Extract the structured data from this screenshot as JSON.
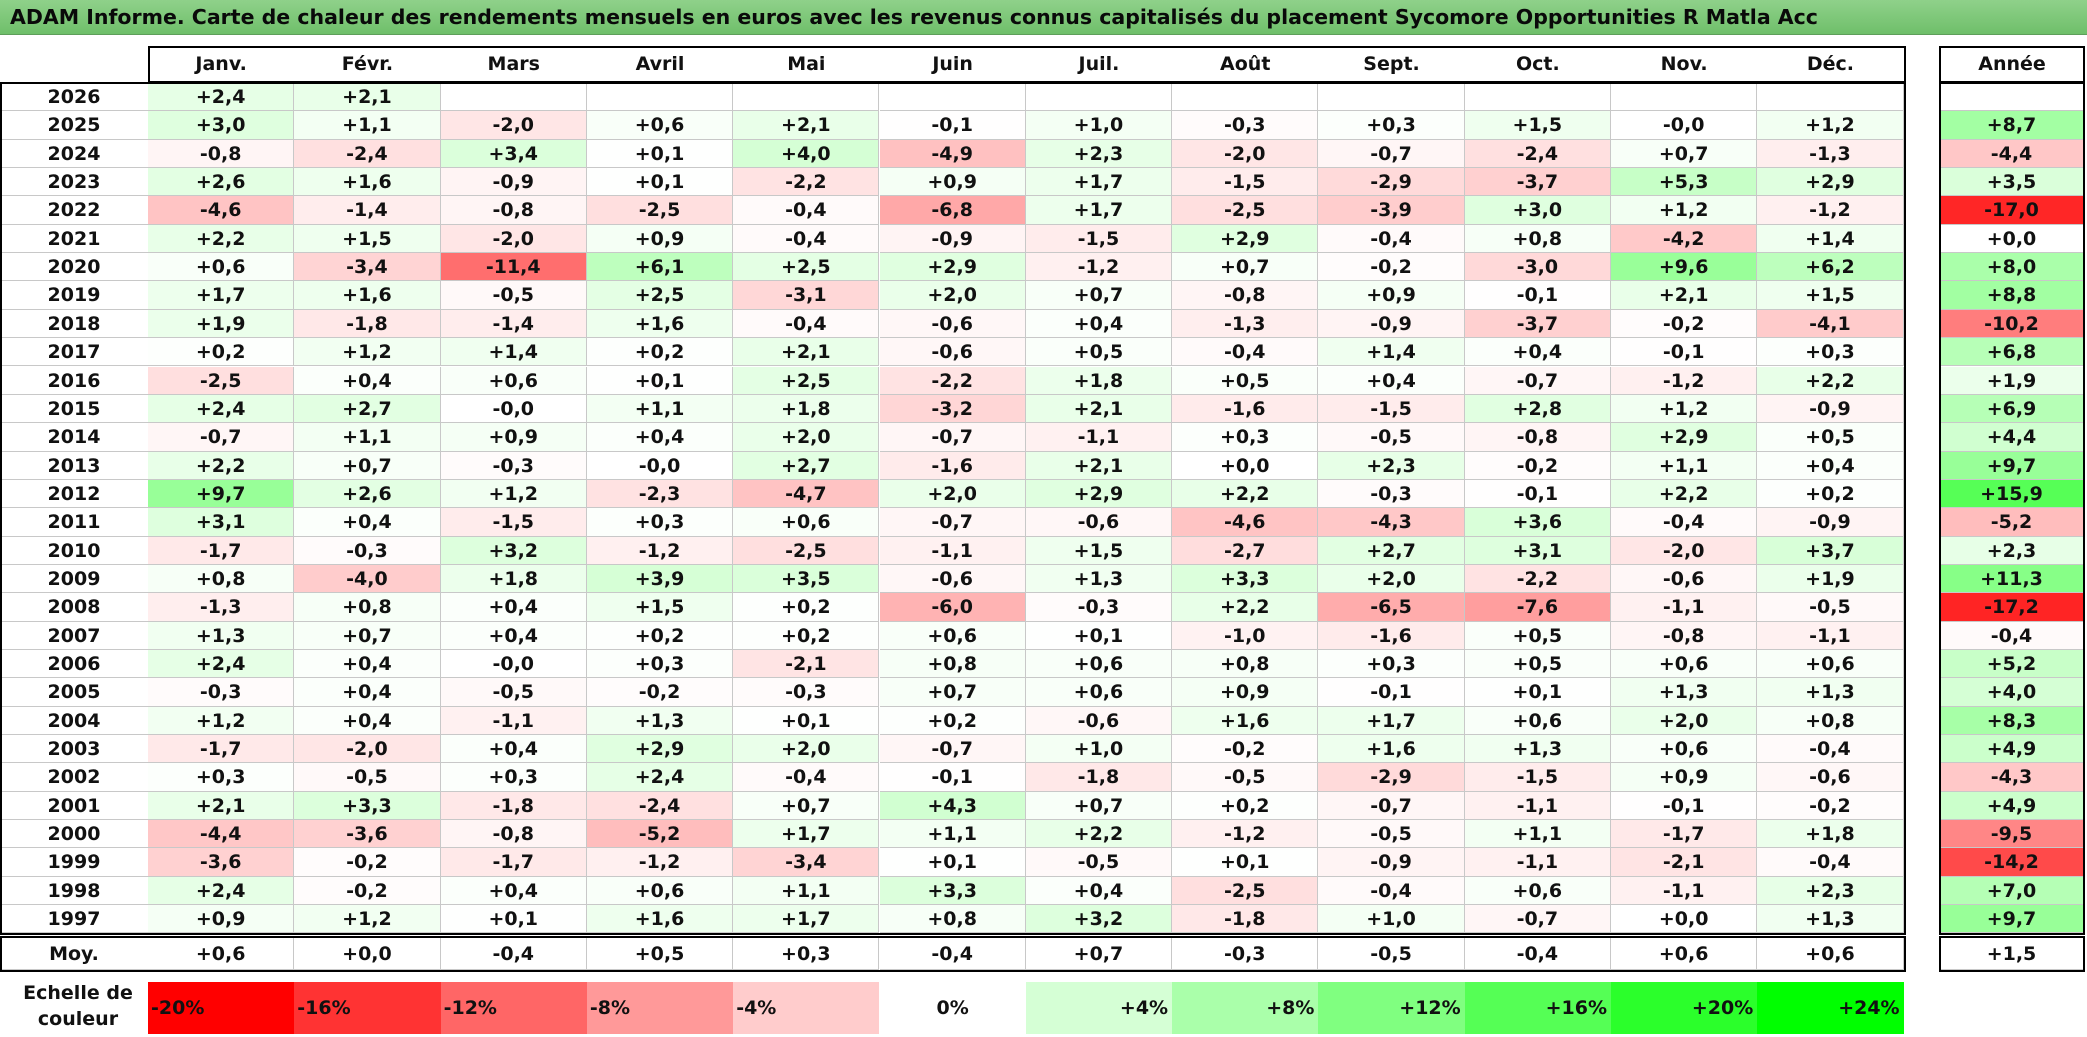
{
  "title": "ADAM Informe. Carte de chaleur des rendements mensuels en euros avec les revenus connus capitalisés du placement Sycomore Opportunities R Matla Acc",
  "legend_label": "Echelle de couleur",
  "colors": {
    "neg_max": "#ff0000",
    "pos_max": "#00ff00",
    "title_bg": "#7fc87a"
  },
  "chart_data": {
    "type": "heatmap",
    "title": "ADAM Informe. Carte de chaleur des rendements mensuels en euros avec les revenus connus capitalisés du placement Sycomore Opportunities R Matla Acc",
    "columns": [
      "Janv.",
      "Févr.",
      "Mars",
      "Avril",
      "Mai",
      "Juin",
      "Juil.",
      "Août",
      "Sept.",
      "Oct.",
      "Nov.",
      "Déc."
    ],
    "annual_header": "Année",
    "rows": [
      {
        "year": "2026",
        "values": [
          "+2,4",
          "+2,1",
          "",
          "",
          "",
          "",
          "",
          "",
          "",
          "",
          "",
          ""
        ],
        "annual": ""
      },
      {
        "year": "2025",
        "values": [
          "+3,0",
          "+1,1",
          "-2,0",
          "+0,6",
          "+2,1",
          "-0,1",
          "+1,0",
          "-0,3",
          "+0,3",
          "+1,5",
          "-0,0",
          "+1,2"
        ],
        "annual": "+8,7"
      },
      {
        "year": "2024",
        "values": [
          "-0,8",
          "-2,4",
          "+3,4",
          "+0,1",
          "+4,0",
          "-4,9",
          "+2,3",
          "-2,0",
          "-0,7",
          "-2,4",
          "+0,7",
          "-1,3"
        ],
        "annual": "-4,4"
      },
      {
        "year": "2023",
        "values": [
          "+2,6",
          "+1,6",
          "-0,9",
          "+0,1",
          "-2,2",
          "+0,9",
          "+1,7",
          "-1,5",
          "-2,9",
          "-3,7",
          "+5,3",
          "+2,9"
        ],
        "annual": "+3,5"
      },
      {
        "year": "2022",
        "values": [
          "-4,6",
          "-1,4",
          "-0,8",
          "-2,5",
          "-0,4",
          "-6,8",
          "+1,7",
          "-2,5",
          "-3,9",
          "+3,0",
          "+1,2",
          "-1,2"
        ],
        "annual": "-17,0"
      },
      {
        "year": "2021",
        "values": [
          "+2,2",
          "+1,5",
          "-2,0",
          "+0,9",
          "-0,4",
          "-0,9",
          "-1,5",
          "+2,9",
          "-0,4",
          "+0,8",
          "-4,2",
          "+1,4"
        ],
        "annual": "+0,0"
      },
      {
        "year": "2020",
        "values": [
          "+0,6",
          "-3,4",
          "-11,4",
          "+6,1",
          "+2,5",
          "+2,9",
          "-1,2",
          "+0,7",
          "-0,2",
          "-3,0",
          "+9,6",
          "+6,2"
        ],
        "annual": "+8,0"
      },
      {
        "year": "2019",
        "values": [
          "+1,7",
          "+1,6",
          "-0,5",
          "+2,5",
          "-3,1",
          "+2,0",
          "+0,7",
          "-0,8",
          "+0,9",
          "-0,1",
          "+2,1",
          "+1,5"
        ],
        "annual": "+8,8"
      },
      {
        "year": "2018",
        "values": [
          "+1,9",
          "-1,8",
          "-1,4",
          "+1,6",
          "-0,4",
          "-0,6",
          "+0,4",
          "-1,3",
          "-0,9",
          "-3,7",
          "-0,2",
          "-4,1"
        ],
        "annual": "-10,2"
      },
      {
        "year": "2017",
        "values": [
          "+0,2",
          "+1,2",
          "+1,4",
          "+0,2",
          "+2,1",
          "-0,6",
          "+0,5",
          "-0,4",
          "+1,4",
          "+0,4",
          "-0,1",
          "+0,3"
        ],
        "annual": "+6,8"
      },
      {
        "year": "2016",
        "values": [
          "-2,5",
          "+0,4",
          "+0,6",
          "+0,1",
          "+2,5",
          "-2,2",
          "+1,8",
          "+0,5",
          "+0,4",
          "-0,7",
          "-1,2",
          "+2,2"
        ],
        "annual": "+1,9"
      },
      {
        "year": "2015",
        "values": [
          "+2,4",
          "+2,7",
          "-0,0",
          "+1,1",
          "+1,8",
          "-3,2",
          "+2,1",
          "-1,6",
          "-1,5",
          "+2,8",
          "+1,2",
          "-0,9"
        ],
        "annual": "+6,9"
      },
      {
        "year": "2014",
        "values": [
          "-0,7",
          "+1,1",
          "+0,9",
          "+0,4",
          "+2,0",
          "-0,7",
          "-1,1",
          "+0,3",
          "-0,5",
          "-0,8",
          "+2,9",
          "+0,5"
        ],
        "annual": "+4,4"
      },
      {
        "year": "2013",
        "values": [
          "+2,2",
          "+0,7",
          "-0,3",
          "-0,0",
          "+2,7",
          "-1,6",
          "+2,1",
          "+0,0",
          "+2,3",
          "-0,2",
          "+1,1",
          "+0,4"
        ],
        "annual": "+9,7"
      },
      {
        "year": "2012",
        "values": [
          "+9,7",
          "+2,6",
          "+1,2",
          "-2,3",
          "-4,7",
          "+2,0",
          "+2,9",
          "+2,2",
          "-0,3",
          "-0,1",
          "+2,2",
          "+0,2"
        ],
        "annual": "+15,9"
      },
      {
        "year": "2011",
        "values": [
          "+3,1",
          "+0,4",
          "-1,5",
          "+0,3",
          "+0,6",
          "-0,7",
          "-0,6",
          "-4,6",
          "-4,3",
          "+3,6",
          "-0,4",
          "-0,9"
        ],
        "annual": "-5,2"
      },
      {
        "year": "2010",
        "values": [
          "-1,7",
          "-0,3",
          "+3,2",
          "-1,2",
          "-2,5",
          "-1,1",
          "+1,5",
          "-2,7",
          "+2,7",
          "+3,1",
          "-2,0",
          "+3,7"
        ],
        "annual": "+2,3"
      },
      {
        "year": "2009",
        "values": [
          "+0,8",
          "-4,0",
          "+1,8",
          "+3,9",
          "+3,5",
          "-0,6",
          "+1,3",
          "+3,3",
          "+2,0",
          "-2,2",
          "-0,6",
          "+1,9"
        ],
        "annual": "+11,3"
      },
      {
        "year": "2008",
        "values": [
          "-1,3",
          "+0,8",
          "+0,4",
          "+1,5",
          "+0,2",
          "-6,0",
          "-0,3",
          "+2,2",
          "-6,5",
          "-7,6",
          "-1,1",
          "-0,5"
        ],
        "annual": "-17,2"
      },
      {
        "year": "2007",
        "values": [
          "+1,3",
          "+0,7",
          "+0,4",
          "+0,2",
          "+0,2",
          "+0,6",
          "+0,1",
          "-1,0",
          "-1,6",
          "+0,5",
          "-0,8",
          "-1,1"
        ],
        "annual": "-0,4"
      },
      {
        "year": "2006",
        "values": [
          "+2,4",
          "+0,4",
          "-0,0",
          "+0,3",
          "-2,1",
          "+0,8",
          "+0,6",
          "+0,8",
          "+0,3",
          "+0,5",
          "+0,6",
          "+0,6"
        ],
        "annual": "+5,2"
      },
      {
        "year": "2005",
        "values": [
          "-0,3",
          "+0,4",
          "-0,5",
          "-0,2",
          "-0,3",
          "+0,7",
          "+0,6",
          "+0,9",
          "-0,1",
          "+0,1",
          "+1,3",
          "+1,3"
        ],
        "annual": "+4,0"
      },
      {
        "year": "2004",
        "values": [
          "+1,2",
          "+0,4",
          "-1,1",
          "+1,3",
          "+0,1",
          "+0,2",
          "-0,6",
          "+1,6",
          "+1,7",
          "+0,6",
          "+2,0",
          "+0,8"
        ],
        "annual": "+8,3"
      },
      {
        "year": "2003",
        "values": [
          "-1,7",
          "-2,0",
          "+0,4",
          "+2,9",
          "+2,0",
          "-0,7",
          "+1,0",
          "-0,2",
          "+1,6",
          "+1,3",
          "+0,6",
          "-0,4"
        ],
        "annual": "+4,9"
      },
      {
        "year": "2002",
        "values": [
          "+0,3",
          "-0,5",
          "+0,3",
          "+2,4",
          "-0,4",
          "-0,1",
          "-1,8",
          "-0,5",
          "-2,9",
          "-1,5",
          "+0,9",
          "-0,6"
        ],
        "annual": "-4,3"
      },
      {
        "year": "2001",
        "values": [
          "+2,1",
          "+3,3",
          "-1,8",
          "-2,4",
          "+0,7",
          "+4,3",
          "+0,7",
          "+0,2",
          "-0,7",
          "-1,1",
          "-0,1",
          "-0,2"
        ],
        "annual": "+4,9"
      },
      {
        "year": "2000",
        "values": [
          "-4,4",
          "-3,6",
          "-0,8",
          "-5,2",
          "+1,7",
          "+1,1",
          "+2,2",
          "-1,2",
          "-0,5",
          "+1,1",
          "-1,7",
          "+1,8"
        ],
        "annual": "-9,5"
      },
      {
        "year": "1999",
        "values": [
          "-3,6",
          "-0,2",
          "-1,7",
          "-1,2",
          "-3,4",
          "+0,1",
          "-0,5",
          "+0,1",
          "-0,9",
          "-1,1",
          "-2,1",
          "-0,4"
        ],
        "annual": "-14,2"
      },
      {
        "year": "1998",
        "values": [
          "+2,4",
          "-0,2",
          "+0,4",
          "+0,6",
          "+1,1",
          "+3,3",
          "+0,4",
          "-2,5",
          "-0,4",
          "+0,6",
          "-1,1",
          "+2,3"
        ],
        "annual": "+7,0"
      },
      {
        "year": "1997",
        "values": [
          "+0,9",
          "+1,2",
          "+0,1",
          "+1,6",
          "+1,7",
          "+0,8",
          "+3,2",
          "-1,8",
          "+1,0",
          "-0,7",
          "+0,0",
          "+1,3"
        ],
        "annual": "+9,7"
      }
    ],
    "average": {
      "label": "Moy.",
      "values": [
        "+0,6",
        "+0,0",
        "-0,4",
        "+0,5",
        "+0,3",
        "-0,4",
        "+0,7",
        "-0,3",
        "-0,5",
        "-0,4",
        "+0,6",
        "+0,6"
      ],
      "annual": "+1,5"
    },
    "color_scale": [
      {
        "label": "-20%",
        "value": -20
      },
      {
        "label": "-16%",
        "value": -16
      },
      {
        "label": "-12%",
        "value": -12
      },
      {
        "label": "-8%",
        "value": -8
      },
      {
        "label": "-4%",
        "value": -4
      },
      {
        "label": "0%",
        "value": 0
      },
      {
        "label": "+4%",
        "value": 4
      },
      {
        "label": "+8%",
        "value": 8
      },
      {
        "label": "+12%",
        "value": 12
      },
      {
        "label": "+16%",
        "value": 16
      },
      {
        "label": "+20%",
        "value": 20
      },
      {
        "label": "+24%",
        "value": 24
      }
    ]
  }
}
